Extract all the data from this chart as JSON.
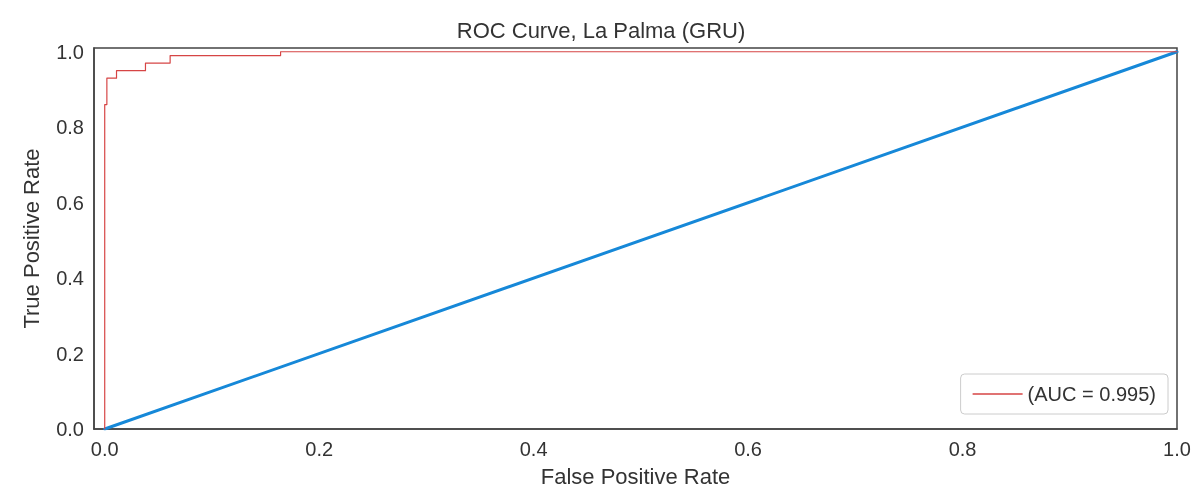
{
  "chart_data": {
    "type": "line",
    "title": "ROC Curve, La Palma (GRU)",
    "xlabel": "False Positive Rate",
    "ylabel": "True Positive Rate",
    "series": [
      {
        "name": "(AUC = 0.995)",
        "type": "step",
        "color": "#d64545",
        "x": [
          0,
          0,
          0.002,
          0.011,
          0.038,
          0.061,
          0.164,
          1.0
        ],
        "values": [
          0,
          0.86,
          0.93,
          0.95,
          0.97,
          0.99,
          1.0,
          1.0
        ]
      },
      {
        "color": "#1688d8",
        "x": [
          0,
          1
        ],
        "values": [
          0,
          1
        ]
      }
    ],
    "xlim": [
      -0.01,
      1.0
    ],
    "ylim": [
      0,
      1.01
    ],
    "xticks": [
      {
        "value": 0,
        "label": "0.0"
      },
      0.2,
      0.4,
      0.6,
      0.8,
      {
        "value": 1,
        "label": "1.0"
      }
    ],
    "yticks": [
      {
        "value": 0,
        "label": "0.0"
      },
      0.2,
      0.4,
      0.6,
      0.8,
      {
        "value": 1,
        "label": "1.0"
      }
    ],
    "legend": "bottom right",
    "marker": "none"
  }
}
